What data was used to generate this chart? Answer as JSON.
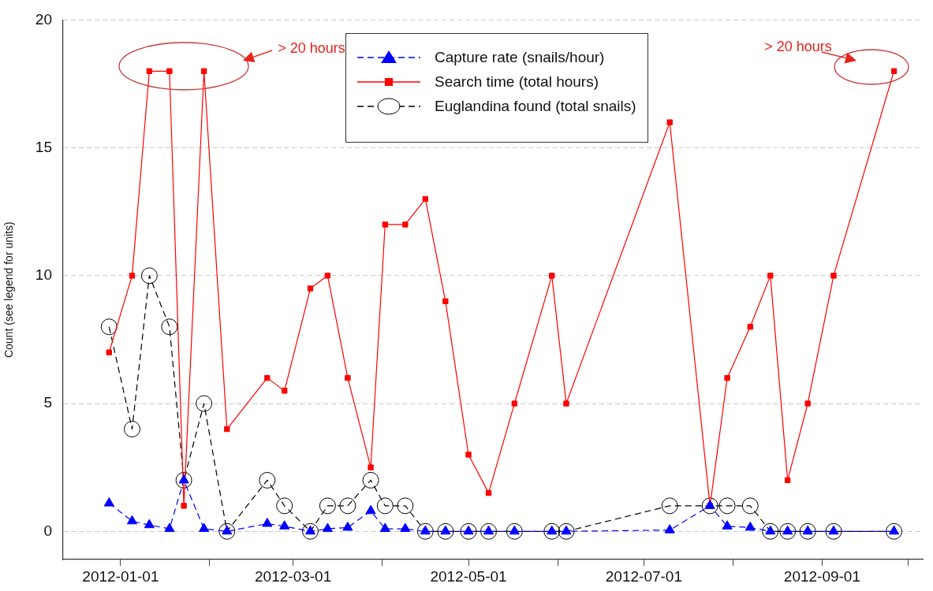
{
  "chart_data": {
    "type": "line",
    "ylabel": "Count (see legend for units)",
    "x": [
      "2011-12-28",
      "2012-01-05",
      "2012-01-11",
      "2012-01-18",
      "2012-01-23",
      "2012-01-30",
      "2012-02-07",
      "2012-02-21",
      "2012-02-27",
      "2012-03-07",
      "2012-03-13",
      "2012-03-20",
      "2012-03-28",
      "2012-04-02",
      "2012-04-09",
      "2012-04-16",
      "2012-04-23",
      "2012-05-01",
      "2012-05-08",
      "2012-05-17",
      "2012-05-30",
      "2012-06-04",
      "2012-07-10",
      "2012-07-24",
      "2012-07-30",
      "2012-08-07",
      "2012-08-14",
      "2012-08-20",
      "2012-08-27",
      "2012-09-05",
      "2012-09-26"
    ],
    "series": [
      {
        "name": "Capture rate (snails/hour)",
        "color": "#0000ff",
        "marker": "triangle",
        "line_style": "dashed",
        "values": [
          1.1,
          0.4,
          0.25,
          0.1,
          2,
          0.1,
          0,
          0.3,
          0.2,
          0,
          0.1,
          0.15,
          0.8,
          0.1,
          0.1,
          0,
          0,
          0,
          0,
          0,
          0,
          0,
          0.05,
          1,
          0.2,
          0.15,
          0,
          0,
          0,
          0,
          0
        ]
      },
      {
        "name": "Search time (total hours)",
        "color": "#ff0000",
        "marker": "square",
        "line_style": "solid",
        "values": [
          7,
          10,
          18,
          18,
          1,
          18,
          4,
          6,
          5.5,
          9.5,
          10,
          6,
          2.5,
          12,
          12,
          13,
          9,
          3,
          1.5,
          5,
          10,
          5,
          16,
          1,
          6,
          8,
          10,
          2,
          5,
          10,
          18
        ]
      },
      {
        "name": "Euglandina found (total snails)",
        "color": "#000000",
        "marker": "circle",
        "line_style": "dashed",
        "values": [
          8,
          4,
          10,
          8,
          2,
          5,
          0,
          2,
          1,
          0,
          1,
          1,
          2,
          1,
          1,
          0,
          0,
          0,
          0,
          0,
          0,
          0,
          1,
          1,
          1,
          1,
          0,
          0,
          0,
          0,
          0
        ]
      }
    ],
    "xlim": [
      "2011-12-12",
      "2012-10-06"
    ],
    "xticks": [
      {
        "value": "2012-01-01",
        "label": "2012-01-01"
      },
      {
        "value": "2012-02-01",
        "label": null
      },
      {
        "value": "2012-03-01",
        "label": "2012-03-01"
      },
      {
        "value": "2012-04-01",
        "label": null
      },
      {
        "value": "2012-05-01",
        "label": "2012-05-01"
      },
      {
        "value": "2012-06-01",
        "label": null
      },
      {
        "value": "2012-07-01",
        "label": "2012-07-01"
      },
      {
        "value": "2012-08-01",
        "label": null
      },
      {
        "value": "2012-09-01",
        "label": "2012-09-01"
      },
      {
        "value": "2012-10-01",
        "label": null
      }
    ],
    "ylim": [
      -1.1,
      20
    ],
    "yticks": [
      0,
      5,
      10,
      15,
      20
    ],
    "grid": "y",
    "legend": "top",
    "annotations": [
      "> 20 hours",
      "> 20 hours"
    ]
  }
}
